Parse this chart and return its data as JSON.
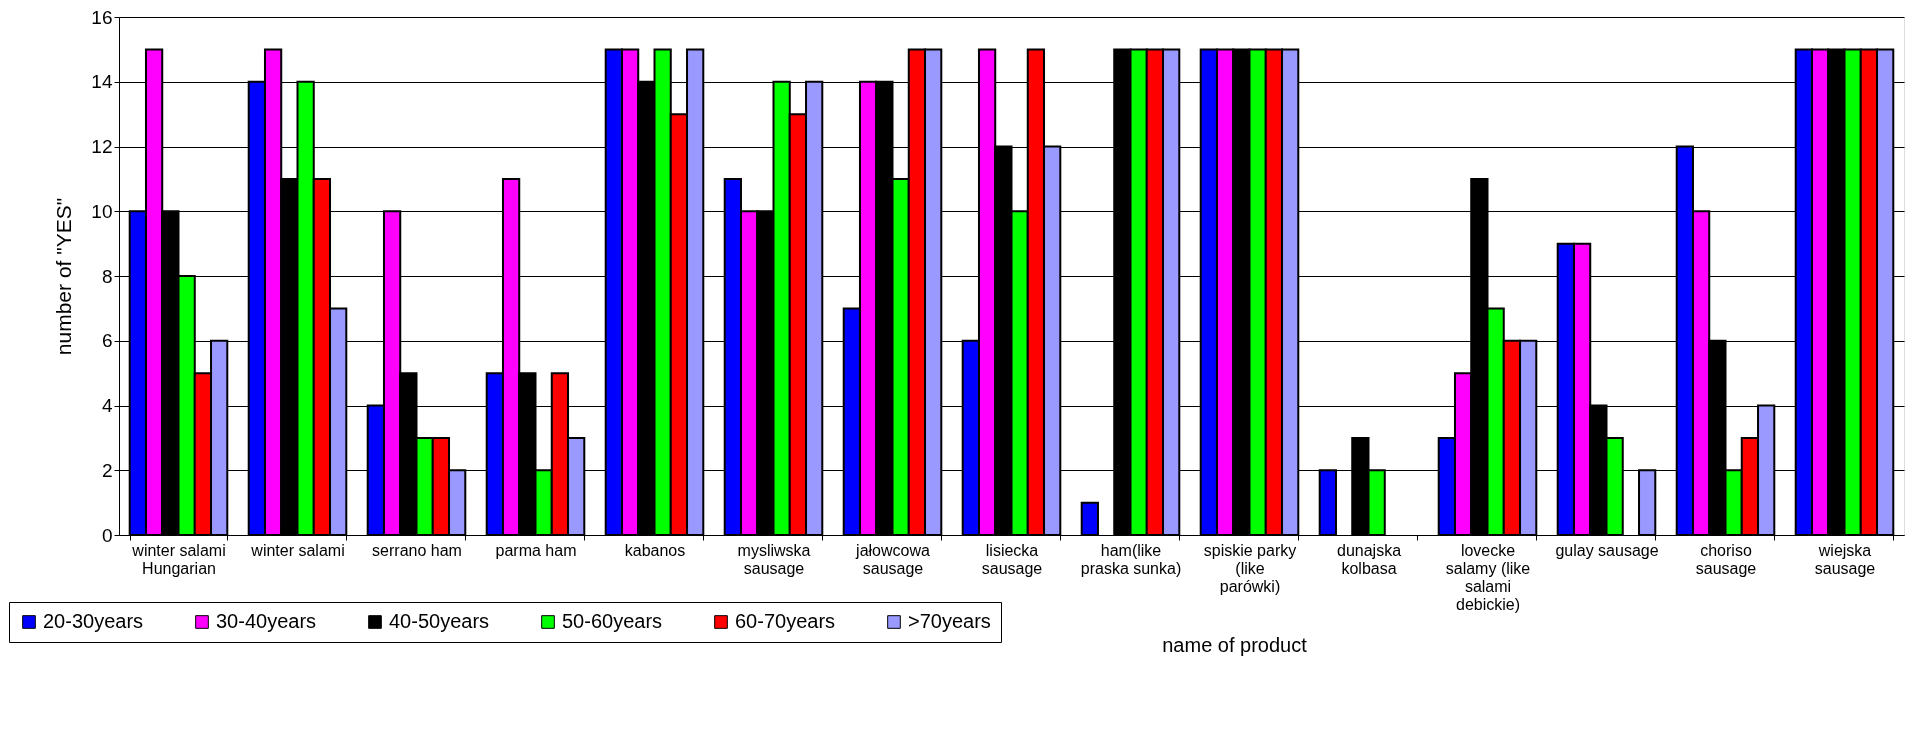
{
  "chart_data": {
    "type": "bar",
    "xlabel": "name of product",
    "ylabel": "number of \"YES\"",
    "categories": [
      "winter salami Hungarian",
      "winter salami",
      "serrano ham",
      "parma ham",
      "kabanos",
      "mysliwska sausage",
      "jałowcowa sausage",
      "lisiecka sausage",
      "ham(like praska sunka)",
      "spiskie parky (like parówki)",
      "dunajska kolbasa",
      "lovecke salamy (like salami debickie)",
      "gulay sausage",
      "choriso sausage",
      "wiejska sausage"
    ],
    "series": [
      {
        "name": "20-30years",
        "color": "#0000ff",
        "values": [
          10,
          14,
          4,
          5,
          15,
          11,
          7,
          6,
          1,
          15,
          2,
          3,
          9,
          12,
          15
        ]
      },
      {
        "name": "30-40years",
        "color": "#ff00ff",
        "values": [
          15,
          15,
          10,
          11,
          15,
          10,
          14,
          15,
          null,
          15,
          null,
          5,
          9,
          10,
          15
        ]
      },
      {
        "name": "40-50years",
        "color": "#000000",
        "values": [
          10,
          11,
          5,
          5,
          14,
          10,
          14,
          12,
          15,
          15,
          3,
          11,
          4,
          6,
          15
        ]
      },
      {
        "name": "50-60years",
        "color": "#00ff00",
        "values": [
          8,
          14,
          3,
          2,
          15,
          14,
          11,
          10,
          15,
          15,
          2,
          7,
          3,
          2,
          15
        ]
      },
      {
        "name": "60-70years",
        "color": "#ff0000",
        "values": [
          5,
          11,
          3,
          5,
          13,
          13,
          15,
          15,
          15,
          15,
          null,
          6,
          null,
          3,
          15
        ]
      },
      {
        "name": ">70years",
        "color": "#9999ff",
        "values": [
          6,
          7,
          2,
          3,
          15,
          14,
          15,
          12,
          15,
          15,
          null,
          6,
          2,
          4,
          15
        ]
      }
    ],
    "ylim": [
      0,
      16
    ],
    "yticks": [
      0,
      2,
      4,
      6,
      8,
      10,
      12,
      14,
      16
    ],
    "grid": "y",
    "legend": "bottom left"
  }
}
